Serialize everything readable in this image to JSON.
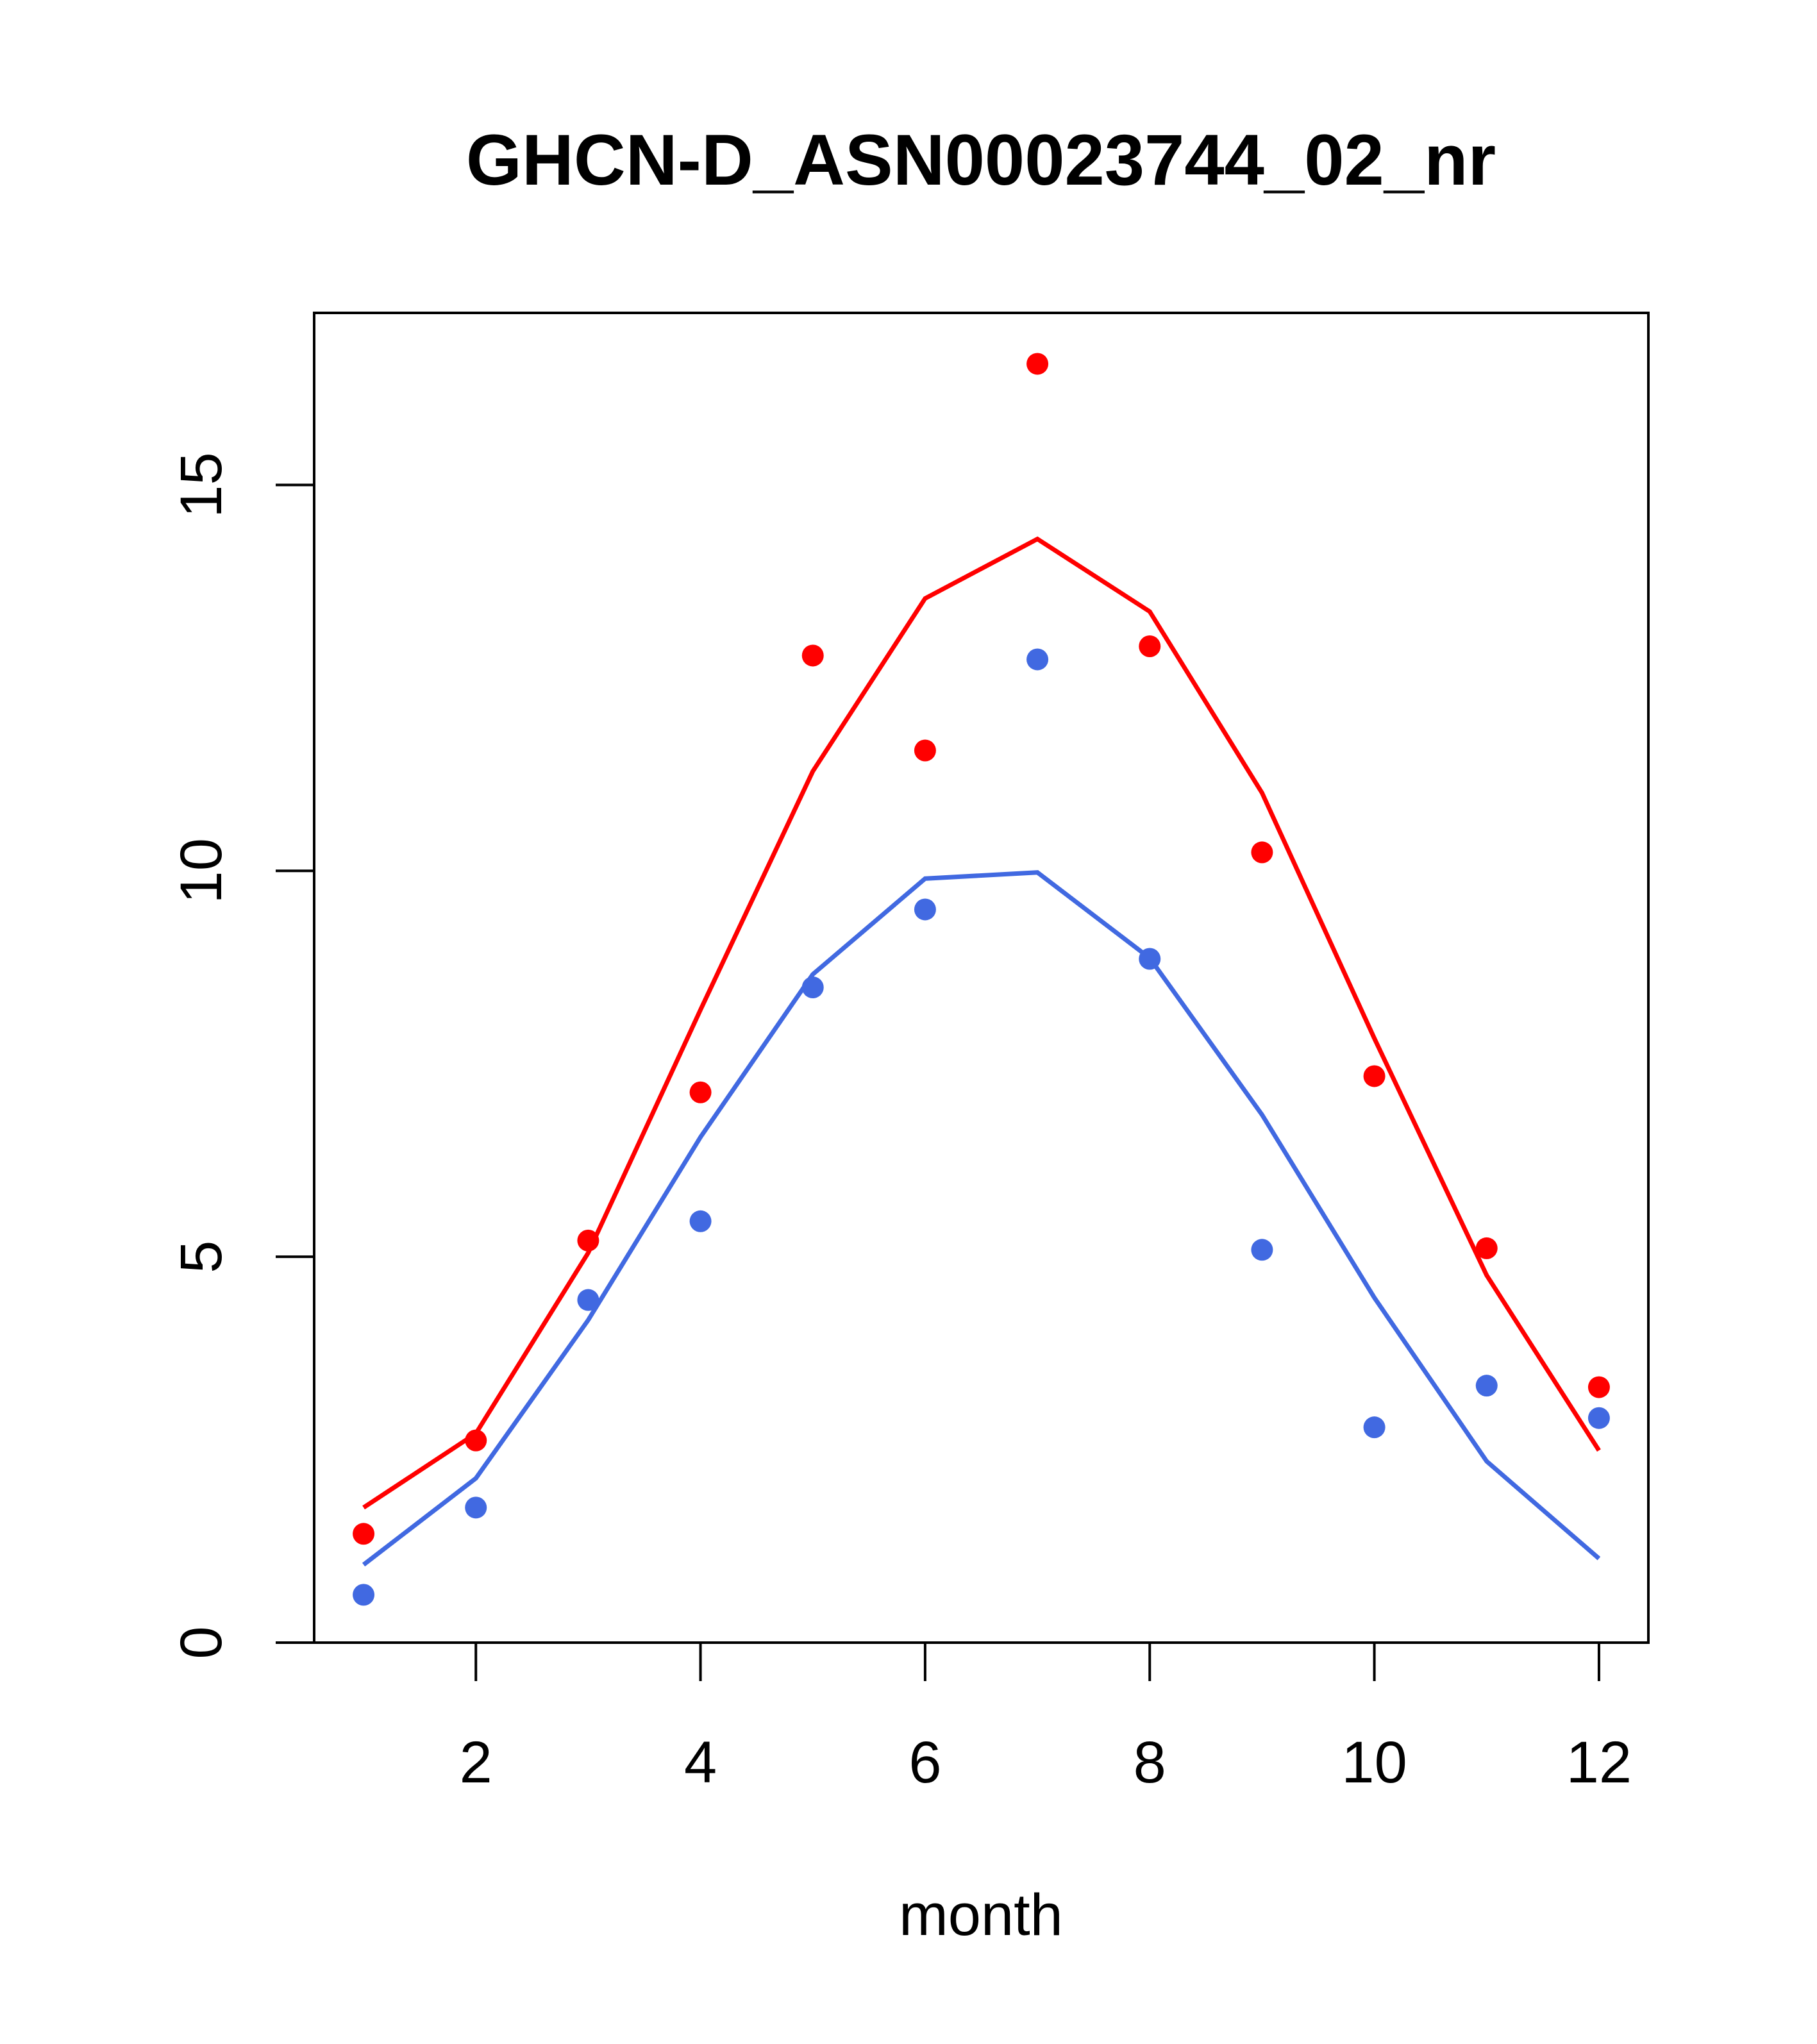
{
  "chart_data": {
    "type": "line",
    "title": "GHCN-D_ASN00023744_02_nr",
    "xlabel": "month",
    "ylabel": "",
    "xlim": [
      0.56,
      12.44
    ],
    "ylim": [
      0,
      17.23
    ],
    "x_ticks": [
      2,
      4,
      6,
      8,
      10,
      12
    ],
    "x_tick_labels": [
      "2",
      "4",
      "6",
      "8",
      "10",
      "12"
    ],
    "y_ticks": [
      0,
      5,
      10,
      15
    ],
    "y_tick_labels": [
      "0",
      "5",
      "10",
      "15"
    ],
    "grid": false,
    "x": [
      1,
      2,
      3,
      4,
      5,
      6,
      7,
      8,
      9,
      10,
      11,
      12
    ],
    "series": [
      {
        "name": "red points",
        "kind": "points",
        "color": "#ff0000",
        "values": [
          1.41,
          2.62,
          5.21,
          7.13,
          12.79,
          11.56,
          16.57,
          12.91,
          10.24,
          7.34,
          5.11,
          3.31
        ]
      },
      {
        "name": "red line",
        "kind": "line",
        "color": "#ff0000",
        "values": [
          1.75,
          2.71,
          5.05,
          8.2,
          11.29,
          13.53,
          14.3,
          13.36,
          11.01,
          7.83,
          4.76,
          2.49
        ]
      },
      {
        "name": "blue points",
        "kind": "points",
        "color": "#4169e1",
        "values": [
          0.62,
          1.75,
          4.44,
          5.46,
          8.49,
          9.5,
          12.74,
          8.86,
          5.09,
          2.79,
          3.33,
          2.91
        ]
      },
      {
        "name": "blue line",
        "kind": "line",
        "color": "#4169e1",
        "values": [
          1.01,
          2.13,
          4.18,
          6.55,
          8.66,
          9.9,
          9.98,
          8.87,
          6.84,
          4.47,
          2.35,
          1.09
        ]
      }
    ]
  }
}
